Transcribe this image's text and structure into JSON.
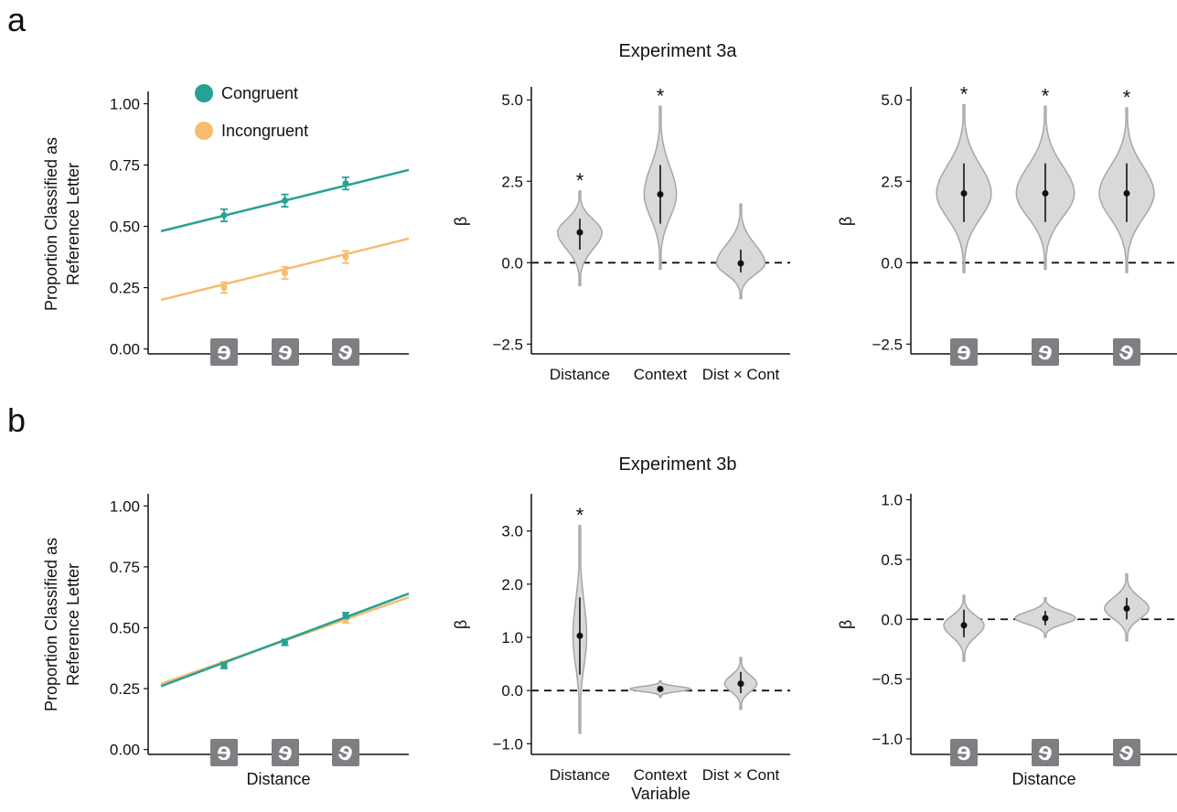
{
  "colors": {
    "congruent": "#26a195",
    "incongruent": "#f7bc6e",
    "violin_fill": "#d9d9d9",
    "violin_stroke": "#a6a6a6",
    "axis": "#111111",
    "glyph_bg": "#7d7f82"
  },
  "labels": {
    "panel_a": "a",
    "panel_b": "b",
    "ylabel_line1": "Proportion Classified as",
    "ylabel_line2": "Reference Letter",
    "beta": "β",
    "distance": "Distance",
    "variable": "Variable",
    "star": "*",
    "glyph": "ɘ"
  },
  "legend": {
    "congruent": "Congruent",
    "incongruent": "Incongruent"
  },
  "chart_data": [
    {
      "id": "a1",
      "type": "line",
      "experiment": "Experiment 3a",
      "ylabel": "Proportion Classified as Reference Letter",
      "xlabel": "",
      "x_categories": [
        "glyph 1",
        "glyph 2",
        "glyph 3"
      ],
      "ylim": [
        -0.02,
        1.05
      ],
      "yticks": [
        0,
        0.25,
        0.5,
        0.75,
        1
      ],
      "ytick_labels": [
        "0.00",
        "0.25",
        "0.50",
        "0.75",
        "1.00"
      ],
      "series": [
        {
          "name": "Congruent",
          "color": "congruent",
          "x": [
            1,
            2,
            3
          ],
          "y": [
            0.545,
            0.605,
            0.675
          ],
          "err": [
            0.025,
            0.025,
            0.025
          ],
          "line_y": [
            0.48,
            0.73
          ]
        },
        {
          "name": "Incongruent",
          "color": "incongruent",
          "x": [
            1,
            2,
            3
          ],
          "y": [
            0.25,
            0.31,
            0.375
          ],
          "err": [
            0.022,
            0.025,
            0.025
          ],
          "line_y": [
            0.2,
            0.45
          ]
        }
      ]
    },
    {
      "id": "a2",
      "type": "violin",
      "experiment": "Experiment 3a",
      "ylabel": "β",
      "categories": [
        "Distance",
        "Context",
        "Dist × Cont"
      ],
      "ylim": [
        -2.8,
        5.4
      ],
      "yticks": [
        -2.5,
        0,
        2.5,
        5
      ],
      "ytick_labels": [
        "−2.5",
        "0.0",
        "2.5",
        "5.0"
      ],
      "violins": [
        {
          "mean": 0.93,
          "lo": 0.4,
          "hi": 1.35,
          "min": -0.7,
          "max": 2.2,
          "width": 0.55,
          "sig": true
        },
        {
          "mean": 2.1,
          "lo": 1.2,
          "hi": 3.0,
          "min": -0.2,
          "max": 4.8,
          "width": 0.4,
          "sig": true
        },
        {
          "mean": -0.02,
          "lo": -0.3,
          "hi": 0.4,
          "min": -1.1,
          "max": 1.8,
          "width": 0.6,
          "sig": false
        }
      ]
    },
    {
      "id": "a3",
      "type": "violin",
      "experiment": "Experiment 3a",
      "ylabel": "β",
      "categories": [
        "glyph 1",
        "glyph 2",
        "glyph 3"
      ],
      "ylim": [
        -2.8,
        5.4
      ],
      "yticks": [
        -2.5,
        0,
        2.5,
        5
      ],
      "ytick_labels": [
        "−2.5",
        "0.0",
        "2.5",
        "5.0"
      ],
      "violins": [
        {
          "mean": 2.13,
          "lo": 1.25,
          "hi": 3.05,
          "min": -0.3,
          "max": 4.85,
          "width": 0.68,
          "sig": true
        },
        {
          "mean": 2.13,
          "lo": 1.25,
          "hi": 3.05,
          "min": -0.2,
          "max": 4.8,
          "width": 0.72,
          "sig": true
        },
        {
          "mean": 2.13,
          "lo": 1.25,
          "hi": 3.05,
          "min": -0.3,
          "max": 4.75,
          "width": 0.68,
          "sig": true
        }
      ]
    },
    {
      "id": "b1",
      "type": "line",
      "experiment": "Experiment 3b",
      "ylabel": "Proportion Classified as Reference Letter",
      "xlabel": "Distance",
      "x_categories": [
        "glyph 1",
        "glyph 2",
        "glyph 3"
      ],
      "ylim": [
        -0.02,
        1.05
      ],
      "yticks": [
        0,
        0.25,
        0.5,
        0.75,
        1
      ],
      "ytick_labels": [
        "0.00",
        "0.25",
        "0.50",
        "0.75",
        "1.00"
      ],
      "series": [
        {
          "name": "Incongruent",
          "color": "incongruent",
          "x": [
            1,
            2,
            3
          ],
          "y": [
            0.35,
            0.44,
            0.535
          ],
          "err": [
            0.012,
            0.012,
            0.015
          ],
          "line_y": [
            0.27,
            0.625
          ]
        },
        {
          "name": "Congruent",
          "color": "congruent",
          "x": [
            1,
            2,
            3
          ],
          "y": [
            0.345,
            0.44,
            0.55
          ],
          "err": [
            0.012,
            0.012,
            0.012
          ],
          "line_y": [
            0.26,
            0.64
          ]
        }
      ]
    },
    {
      "id": "b2",
      "type": "violin",
      "experiment": "Experiment 3b",
      "ylabel": "β",
      "xlabel": "Variable",
      "categories": [
        "Distance",
        "Context",
        "Dist × Cont"
      ],
      "ylim": [
        -1.2,
        3.7
      ],
      "yticks": [
        -1,
        0,
        1,
        2,
        3
      ],
      "ytick_labels": [
        "−1.0",
        "0.0",
        "1.0",
        "2.0",
        "3.0"
      ],
      "violins": [
        {
          "mean": 1.03,
          "lo": 0.3,
          "hi": 1.75,
          "min": -0.8,
          "max": 3.1,
          "width": 0.17,
          "sig": true
        },
        {
          "mean": 0.03,
          "lo": -0.02,
          "hi": 0.08,
          "min": -0.12,
          "max": 0.18,
          "width": 0.75,
          "sig": false
        },
        {
          "mean": 0.13,
          "lo": -0.05,
          "hi": 0.35,
          "min": -0.35,
          "max": 0.62,
          "width": 0.4,
          "sig": false
        }
      ]
    },
    {
      "id": "b3",
      "type": "violin",
      "experiment": "Experiment 3b",
      "ylabel": "β",
      "xlabel": "Distance",
      "categories": [
        "glyph 1",
        "glyph 2",
        "glyph 3"
      ],
      "ylim": [
        -1.13,
        1.05
      ],
      "yticks": [
        -1,
        -0.5,
        0,
        0.5,
        1
      ],
      "ytick_labels": [
        "−1.0",
        "−0.5",
        "0.0",
        "0.5",
        "1.0"
      ],
      "violins": [
        {
          "mean": -0.05,
          "lo": -0.15,
          "hi": 0.08,
          "min": -0.35,
          "max": 0.2,
          "width": 0.5,
          "sig": false
        },
        {
          "mean": 0.01,
          "lo": -0.05,
          "hi": 0.07,
          "min": -0.15,
          "max": 0.18,
          "width": 0.75,
          "sig": false
        },
        {
          "mean": 0.09,
          "lo": 0.0,
          "hi": 0.18,
          "min": -0.18,
          "max": 0.38,
          "width": 0.55,
          "sig": false
        }
      ]
    }
  ]
}
